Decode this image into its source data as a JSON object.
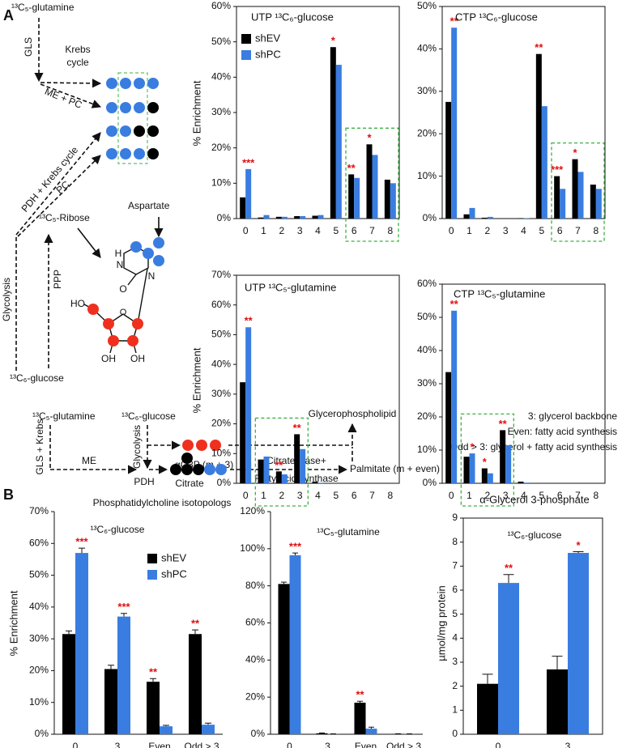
{
  "chart_data": [
    {
      "type": "bar",
      "title": "UTP ¹³C₆-glucose",
      "y_label": "% Enrichment",
      "categories": [
        "0",
        "1",
        "2",
        "3",
        "4",
        "5",
        "6",
        "7",
        "8"
      ],
      "series": [
        {
          "name": "shEV",
          "color": "#000000",
          "values": [
            6,
            0.3,
            0.5,
            0.7,
            0.8,
            48.5,
            12.5,
            21,
            11
          ]
        },
        {
          "name": "shPC",
          "color": "#3a7de0",
          "values": [
            14,
            1,
            0.5,
            0.7,
            1,
            43.5,
            11.5,
            18,
            10
          ]
        }
      ],
      "significance": [
        "***",
        null,
        null,
        null,
        null,
        "*",
        "**",
        "*",
        null
      ],
      "ylim": [
        0,
        60
      ],
      "yticks": [
        {
          "value": 0,
          "label": "0%"
        },
        {
          "value": 10,
          "label": "10%"
        },
        {
          "value": 20,
          "label": "20%"
        },
        {
          "value": 30,
          "label": "30%"
        },
        {
          "value": 40,
          "label": "40%"
        },
        {
          "value": 50,
          "label": "50%"
        },
        {
          "value": 60,
          "label": "60%"
        }
      ],
      "legend": true
    },
    {
      "type": "bar",
      "title": "CTP ¹³C₆-glucose",
      "categories": [
        "0",
        "1",
        "2",
        "3",
        "4",
        "5",
        "6",
        "7",
        "8"
      ],
      "series": [
        {
          "name": "shEV",
          "color": "#000000",
          "values": [
            27.5,
            1,
            0.2,
            0,
            0.1,
            38.8,
            10,
            14,
            8
          ]
        },
        {
          "name": "shPC",
          "color": "#3a7de0",
          "values": [
            45,
            2.5,
            0.4,
            0,
            0.1,
            26.5,
            7,
            11,
            7
          ]
        }
      ],
      "significance": [
        "**",
        null,
        null,
        null,
        null,
        "**",
        "***",
        "*",
        null
      ],
      "ylim": [
        0,
        50
      ],
      "yticks": [
        {
          "value": 0,
          "label": "0%"
        },
        {
          "value": 10,
          "label": "10%"
        },
        {
          "value": 20,
          "label": "20%"
        },
        {
          "value": 30,
          "label": "30%"
        },
        {
          "value": 40,
          "label": "40%"
        },
        {
          "value": 50,
          "label": "50%"
        }
      ]
    },
    {
      "type": "bar",
      "title": "UTP ¹³C₅-glutamine",
      "y_label": "% Enrichment",
      "categories": [
        "0",
        "1",
        "2",
        "3",
        "4",
        "5",
        "6",
        "7",
        "8"
      ],
      "series": [
        {
          "name": "shEV",
          "color": "#000000",
          "values": [
            34,
            8,
            4,
            16.5,
            0.5,
            0,
            0,
            0,
            0
          ]
        },
        {
          "name": "shPC",
          "color": "#3a7de0",
          "values": [
            52.5,
            9,
            3,
            11.5,
            0.1,
            0,
            0,
            0,
            0
          ]
        }
      ],
      "significance": [
        "**",
        null,
        "**",
        "**",
        null,
        null,
        null,
        null,
        null
      ],
      "ylim": [
        0,
        70
      ],
      "yticks": [
        {
          "value": 0,
          "label": "0%"
        },
        {
          "value": 10,
          "label": "10%"
        },
        {
          "value": 20,
          "label": "20%"
        },
        {
          "value": 30,
          "label": "30%"
        },
        {
          "value": 40,
          "label": "40%"
        },
        {
          "value": 50,
          "label": "50%"
        },
        {
          "value": 60,
          "label": "60%"
        },
        {
          "value": 70,
          "label": "70%"
        }
      ]
    },
    {
      "type": "bar",
      "title": "CTP ¹³C₅-glutamine",
      "categories": [
        "0",
        "1",
        "2",
        "3",
        "4",
        "5",
        "6",
        "7",
        "8"
      ],
      "series": [
        {
          "name": "shEV",
          "color": "#000000",
          "values": [
            33.5,
            8,
            4.5,
            16,
            0.5,
            0,
            0,
            0,
            0
          ]
        },
        {
          "name": "shPC",
          "color": "#3a7de0",
          "values": [
            52,
            9,
            3,
            11.5,
            0.2,
            0,
            0,
            0,
            0
          ]
        }
      ],
      "significance": [
        "**",
        "*",
        "*",
        "**",
        null,
        null,
        null,
        null,
        null
      ],
      "ylim": [
        0,
        60
      ],
      "yticks": [
        {
          "value": 0,
          "label": "0%"
        },
        {
          "value": 10,
          "label": "10%"
        },
        {
          "value": 20,
          "label": "20%"
        },
        {
          "value": 30,
          "label": "30%"
        },
        {
          "value": 40,
          "label": "40%"
        },
        {
          "value": 50,
          "label": "50%"
        },
        {
          "value": 60,
          "label": "60%"
        }
      ]
    },
    {
      "type": "bar",
      "subtitle": "¹³C₆-glucose",
      "y_label": "% Enrichment",
      "categories": [
        "0",
        "3",
        "Even",
        "Odd > 3"
      ],
      "series": [
        {
          "name": "shEV",
          "color": "#000000",
          "values": [
            31.5,
            20.5,
            16.5,
            31.5
          ],
          "errors": [
            1,
            1.2,
            1,
            1.3
          ]
        },
        {
          "name": "shPC",
          "color": "#3a7de0",
          "values": [
            57,
            37,
            2.5,
            3
          ],
          "errors": [
            1.5,
            1,
            0.3,
            0.5
          ]
        }
      ],
      "significance": [
        "***",
        "***",
        "**",
        "**"
      ],
      "ylim": [
        0,
        70
      ],
      "yticks": [
        {
          "value": 0,
          "label": "0%"
        },
        {
          "value": 10,
          "label": "10%"
        },
        {
          "value": 20,
          "label": "20%"
        },
        {
          "value": 30,
          "label": "30%"
        },
        {
          "value": 40,
          "label": "40%"
        },
        {
          "value": 50,
          "label": "50%"
        },
        {
          "value": 60,
          "label": "60%"
        },
        {
          "value": 70,
          "label": "70%"
        }
      ],
      "legend": true
    },
    {
      "type": "bar",
      "subtitle": "¹³C₅-glutamine",
      "categories": [
        "0",
        "3",
        "Even",
        "Odd > 3"
      ],
      "series": [
        {
          "name": "shEV",
          "color": "#000000",
          "values": [
            81,
            0.5,
            17,
            0.2
          ],
          "errors": [
            1,
            0.2,
            0.8,
            0.1
          ]
        },
        {
          "name": "shPC",
          "color": "#3a7de0",
          "values": [
            96.5,
            0.1,
            3,
            0.1
          ],
          "errors": [
            1.2,
            0.1,
            0.8,
            0.1
          ]
        }
      ],
      "significance": [
        "***",
        null,
        "**",
        null
      ],
      "ylim": [
        0,
        120
      ],
      "yticks": [
        {
          "value": 0,
          "label": "0%"
        },
        {
          "value": 20,
          "label": "20%"
        },
        {
          "value": 40,
          "label": "40%"
        },
        {
          "value": 60,
          "label": "60%"
        },
        {
          "value": 80,
          "label": "80%"
        },
        {
          "value": 100,
          "label": "100%"
        },
        {
          "value": 120,
          "label": "120%"
        }
      ]
    },
    {
      "type": "bar",
      "title": "α-Glycerol 3-phosphate",
      "subtitle": "¹³C₆-glucose",
      "y_label": "µmol/mg protein",
      "categories": [
        "0",
        "3"
      ],
      "series": [
        {
          "name": "shEV",
          "color": "#000000",
          "values": [
            2.1,
            2.7
          ],
          "errors": [
            0.4,
            0.55
          ]
        },
        {
          "name": "shPC",
          "color": "#3a7de0",
          "values": [
            6.3,
            7.55
          ],
          "errors": [
            0.35,
            0.05
          ]
        }
      ],
      "significance": [
        "**",
        "*"
      ],
      "ylim": [
        0,
        9
      ],
      "yticks": [
        0,
        1,
        2,
        3,
        4,
        5,
        6,
        7,
        8,
        9
      ]
    }
  ],
  "panel_b_title": "Phosphatidylcholine isotopologs",
  "diagram_a": {
    "label": "A",
    "glutamine": "¹³C₅-glutamine",
    "gls": "GLS",
    "krebs_cycle": [
      "Krebs",
      "cycle"
    ],
    "me_pc": "ME + PC",
    "pdh_krebs": "PDH + Krebs cycle",
    "pc": "PC",
    "glycolysis": "Glycolysis",
    "ppp": "PPP",
    "ribose": "¹³C₅-Ribose",
    "aspartate": "Aspartate",
    "glucose": "¹³C₆-glucose",
    "atoms": [
      "HO",
      "O",
      "OH",
      "OH",
      "O",
      "N",
      "H",
      "N"
    ]
  },
  "diagram_b": {
    "label": "B",
    "glutamine": "¹³C₅-glutamine",
    "gls_krebs": "GLS + Krebs",
    "me": "ME",
    "glucose": "¹³C₆-glucose",
    "glycolysis": "Glycolysis",
    "pdh": "PDH",
    "citrate": "Citrate",
    "ag3p": "αG3P (m + 3)",
    "glycerophospholipid": "Glycerophospholipid",
    "citrate_lyase": "Citrate lyase+",
    "fas": "Fatty acid synthase",
    "palmitate": "Palmitate (m + even)",
    "notes": [
      "3: glycerol backbone",
      "Even: fatty acid synthesis",
      "Odd > 3: glycerol + fatty acid synthesis"
    ]
  }
}
